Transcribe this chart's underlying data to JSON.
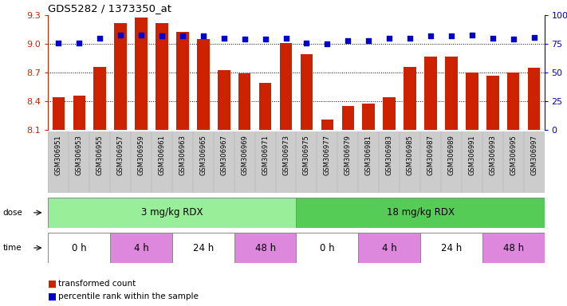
{
  "title": "GDS5282 / 1373350_at",
  "samples": [
    "GSM306951",
    "GSM306953",
    "GSM306955",
    "GSM306957",
    "GSM306959",
    "GSM306961",
    "GSM306963",
    "GSM306965",
    "GSM306967",
    "GSM306969",
    "GSM306971",
    "GSM306973",
    "GSM306975",
    "GSM306977",
    "GSM306979",
    "GSM306981",
    "GSM306983",
    "GSM306985",
    "GSM306987",
    "GSM306989",
    "GSM306991",
    "GSM306993",
    "GSM306995",
    "GSM306997"
  ],
  "bar_values": [
    8.44,
    8.46,
    8.76,
    9.22,
    9.28,
    9.22,
    9.13,
    9.05,
    8.73,
    8.69,
    8.59,
    9.01,
    8.89,
    8.21,
    8.35,
    8.38,
    8.44,
    8.76,
    8.87,
    8.87,
    8.7,
    8.67,
    8.7,
    8.75
  ],
  "percentile_values": [
    76,
    76,
    80,
    83,
    83,
    82,
    82,
    82,
    80,
    79,
    79,
    80,
    76,
    75,
    78,
    78,
    80,
    80,
    82,
    82,
    83,
    80,
    79,
    81
  ],
  "bar_color": "#cc2200",
  "dot_color": "#0000cc",
  "ylim_left": [
    8.1,
    9.3
  ],
  "ylim_right": [
    0,
    100
  ],
  "yticks_left": [
    8.1,
    8.4,
    8.7,
    9.0,
    9.3
  ],
  "yticks_right": [
    0,
    25,
    50,
    75,
    100
  ],
  "dose_groups": [
    {
      "label": "3 mg/kg RDX",
      "start": 0,
      "end": 12,
      "color": "#99ee99"
    },
    {
      "label": "18 mg/kg RDX",
      "start": 12,
      "end": 24,
      "color": "#55cc55"
    }
  ],
  "time_groups": [
    {
      "label": "0 h",
      "start": 0,
      "end": 3,
      "color": "#ffffff"
    },
    {
      "label": "4 h",
      "start": 3,
      "end": 6,
      "color": "#dd88dd"
    },
    {
      "label": "24 h",
      "start": 6,
      "end": 9,
      "color": "#ffffff"
    },
    {
      "label": "48 h",
      "start": 9,
      "end": 12,
      "color": "#dd88dd"
    },
    {
      "label": "0 h",
      "start": 12,
      "end": 15,
      "color": "#ffffff"
    },
    {
      "label": "4 h",
      "start": 15,
      "end": 18,
      "color": "#dd88dd"
    },
    {
      "label": "24 h",
      "start": 18,
      "end": 21,
      "color": "#ffffff"
    },
    {
      "label": "48 h",
      "start": 21,
      "end": 24,
      "color": "#dd88dd"
    }
  ],
  "xlabels_bg": "#cccccc",
  "background_color": "#ffffff"
}
